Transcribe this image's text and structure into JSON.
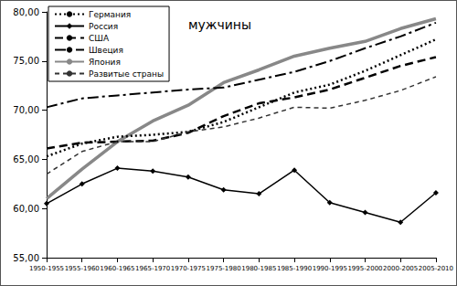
{
  "chart_data": {
    "type": "line",
    "title": "мужчины",
    "categories": [
      "1950-1955",
      "1955-1960",
      "1960-1965",
      "1965-1970",
      "1970-1975",
      "1975-1980",
      "1980-1985",
      "1985-1990",
      "1990-1995",
      "1995-2000",
      "2000-2005",
      "2005-2010"
    ],
    "series": [
      {
        "name": "Германия",
        "color": "#000000",
        "line_style": "dotted",
        "values": [
          65.3,
          66.6,
          67.3,
          67.5,
          67.8,
          68.8,
          70.3,
          71.8,
          72.6,
          74.0,
          75.6,
          77.2
        ]
      },
      {
        "name": "Россия",
        "color": "#000000",
        "line_style": "solid",
        "marker": "diamond",
        "values": [
          60.5,
          62.5,
          64.1,
          63.8,
          63.2,
          61.9,
          61.5,
          63.9,
          60.6,
          59.6,
          58.6,
          61.6
        ]
      },
      {
        "name": "США",
        "color": "#000000",
        "line_style": "dashed",
        "values": [
          66.1,
          66.7,
          66.8,
          66.9,
          67.7,
          69.4,
          70.7,
          71.3,
          72.1,
          73.3,
          74.5,
          75.4
        ]
      },
      {
        "name": "Швеция",
        "color": "#000000",
        "line_style": "dashdot",
        "values": [
          70.3,
          71.2,
          71.5,
          71.8,
          72.1,
          72.3,
          73.1,
          73.9,
          75.0,
          76.3,
          77.5,
          78.9
        ]
      },
      {
        "name": "Япония",
        "color": "#888888",
        "line_style": "double",
        "values": [
          61.0,
          64.0,
          66.8,
          68.9,
          70.5,
          72.8,
          74.1,
          75.5,
          76.3,
          77.0,
          78.3,
          79.3
        ]
      },
      {
        "name": "Развитые страны",
        "color": "#333333",
        "line_style": "shortdash",
        "values": [
          63.5,
          65.8,
          66.8,
          66.8,
          67.8,
          68.3,
          69.2,
          70.3,
          70.2,
          71.0,
          72.0,
          73.4
        ]
      }
    ],
    "ylim": [
      55,
      80
    ],
    "yticks": [
      {
        "value": 55,
        "label": "55,00"
      },
      {
        "value": 60,
        "label": "60,00"
      },
      {
        "value": 65,
        "label": "65,00"
      },
      {
        "value": 70,
        "label": "70,00"
      },
      {
        "value": 75,
        "label": "75,00"
      },
      {
        "value": 80,
        "label": "80,00"
      }
    ],
    "grid": false,
    "legend": "top-left"
  }
}
